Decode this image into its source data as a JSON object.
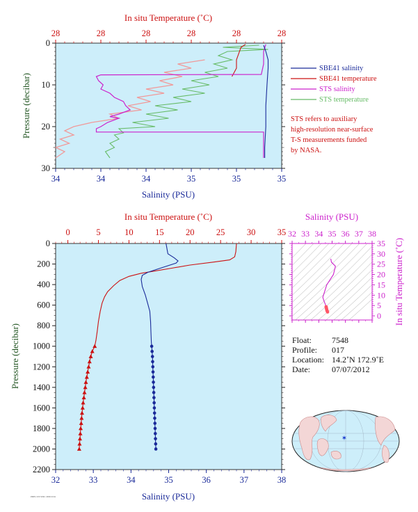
{
  "chart_data": [
    {
      "type": "line",
      "panel": "top-profile",
      "top_axis": {
        "label": "In situ Temperature (˚C)",
        "ticks": [
          "28",
          "28",
          "28",
          "28",
          "28",
          "28"
        ],
        "color": "#cc1111"
      },
      "bottom_axis": {
        "label": "Salinity (PSU)",
        "ticks": [
          "34",
          "34",
          "34",
          "35",
          "35",
          "35"
        ],
        "range": [
          34.0,
          35.0
        ],
        "color": "#1a2a99"
      },
      "left_axis": {
        "label": "Pressure (decibar)",
        "ticks": [
          "0",
          "10",
          "20",
          "30"
        ],
        "range": [
          0,
          30
        ],
        "inverted": true
      },
      "temp_range": [
        27.6,
        28.1
      ],
      "legend": {
        "placement": "right",
        "entries": [
          {
            "name": "SBE41 salinity",
            "color": "#1a2a99"
          },
          {
            "name": "SBE41 temperature",
            "color": "#cc1111"
          },
          {
            "name": "STS salinity",
            "color": "#cc22cc"
          },
          {
            "name": "STS temperature",
            "color": "#66bb66"
          }
        ]
      },
      "note": [
        "STS refers to auxiliary",
        "high-resolution near-surface",
        "T-S measurements funded",
        "by NASA."
      ],
      "series": [
        {
          "name": "SBE41 salinity",
          "axis": "salinity",
          "points": [
            [
              34.92,
              0.5
            ],
            [
              34.93,
              2
            ],
            [
              34.94,
              4
            ],
            [
              34.94,
              6
            ],
            [
              34.935,
              10
            ],
            [
              34.93,
              15
            ],
            [
              34.93,
              20
            ],
            [
              34.925,
              25
            ],
            [
              34.925,
              27.5
            ]
          ]
        },
        {
          "name": "SBE41 temperature",
          "axis": "temperature",
          "points": [
            [
              28.02,
              0.3
            ],
            [
              28.01,
              1
            ],
            [
              28.0,
              4
            ],
            [
              28.0,
              6
            ],
            [
              27.99,
              8
            ]
          ]
        },
        {
          "name": "STS salinity",
          "axis": "salinity",
          "points": [
            [
              34.93,
              0.3
            ],
            [
              34.92,
              2
            ],
            [
              34.92,
              5
            ],
            [
              34.91,
              7.5
            ],
            [
              34.2,
              7.6
            ],
            [
              34.18,
              8
            ],
            [
              34.19,
              9
            ],
            [
              34.21,
              10
            ],
            [
              34.2,
              11
            ],
            [
              34.24,
              12
            ],
            [
              34.26,
              13
            ],
            [
              34.3,
              14
            ],
            [
              34.31,
              15
            ],
            [
              34.33,
              16
            ],
            [
              34.28,
              17
            ],
            [
              34.24,
              17.6
            ],
            [
              34.28,
              18
            ],
            [
              34.23,
              19
            ],
            [
              34.2,
              20
            ],
            [
              34.18,
              20.5
            ],
            [
              34.18,
              21.3
            ],
            [
              34.92,
              21.3
            ],
            [
              34.92,
              22
            ],
            [
              34.92,
              25
            ],
            [
              34.92,
              27.5
            ]
          ]
        },
        {
          "name": "STS temperature",
          "axis": "temperature",
          "points": [
            [
              28.05,
              0.5
            ],
            [
              27.97,
              1
            ],
            [
              28.07,
              1.5
            ],
            [
              27.98,
              2
            ],
            [
              27.96,
              3
            ],
            [
              27.99,
              4
            ],
            [
              27.95,
              5
            ],
            [
              27.98,
              6
            ],
            [
              27.93,
              7
            ],
            [
              27.96,
              8
            ],
            [
              27.9,
              9
            ],
            [
              27.94,
              10
            ],
            [
              27.88,
              11
            ],
            [
              27.93,
              12
            ],
            [
              27.86,
              13
            ],
            [
              27.9,
              14
            ],
            [
              27.82,
              15
            ],
            [
              27.87,
              16
            ],
            [
              27.8,
              17
            ],
            [
              27.85,
              18
            ],
            [
              27.77,
              19
            ],
            [
              27.82,
              20
            ],
            [
              27.74,
              20.5
            ],
            [
              27.75,
              21.5
            ],
            [
              27.73,
              22
            ],
            [
              27.74,
              23
            ],
            [
              27.72,
              24
            ],
            [
              27.73,
              25
            ],
            [
              27.71,
              26
            ],
            [
              27.72,
              27.5
            ]
          ]
        },
        {
          "name": "STS temperature (pink)",
          "axis": "temperature",
          "points": [
            [
              27.93,
              4
            ],
            [
              27.87,
              5
            ],
            [
              27.9,
              6
            ],
            [
              27.84,
              7
            ],
            [
              27.88,
              8
            ],
            [
              27.83,
              9
            ],
            [
              27.86,
              10
            ],
            [
              27.8,
              11
            ],
            [
              27.84,
              12
            ],
            [
              27.78,
              13
            ],
            [
              27.81,
              14
            ],
            [
              27.76,
              15
            ],
            [
              27.79,
              16
            ],
            [
              27.72,
              17
            ],
            [
              27.74,
              18
            ],
            [
              27.68,
              19
            ],
            [
              27.64,
              20
            ],
            [
              27.62,
              21
            ],
            [
              27.64,
              22
            ],
            [
              27.61,
              23
            ],
            [
              27.63,
              24
            ],
            [
              27.6,
              25
            ],
            [
              27.62,
              26
            ],
            [
              27.6,
              27.5
            ]
          ]
        }
      ]
    },
    {
      "type": "line",
      "panel": "full-profile",
      "top_axis": {
        "label": "In situ Temperature (˚C)",
        "ticks": [
          "0",
          "5",
          "10",
          "15",
          "20",
          "25",
          "30",
          "35"
        ],
        "range": [
          -2,
          35
        ],
        "color": "#cc1111"
      },
      "bottom_axis": {
        "label": "Salinity (PSU)",
        "ticks": [
          "32",
          "33",
          "34",
          "35",
          "36",
          "37",
          "38"
        ],
        "range": [
          32,
          38
        ],
        "color": "#1a2a99"
      },
      "left_axis": {
        "label": "Pressure (decibar)",
        "ticks": [
          "0",
          "200",
          "400",
          "600",
          "800",
          "1000",
          "1200",
          "1400",
          "1600",
          "1800",
          "2000",
          "2200"
        ],
        "range": [
          0,
          2200
        ],
        "inverted": true
      },
      "series": [
        {
          "name": "Temperature",
          "axis": "temperature",
          "points": [
            [
              27.6,
              0
            ],
            [
              27.5,
              80
            ],
            [
              27.3,
              130
            ],
            [
              26.5,
              160
            ],
            [
              24,
              180
            ],
            [
              20,
              210
            ],
            [
              17,
              240
            ],
            [
              14,
              270
            ],
            [
              12,
              290
            ],
            [
              10,
              320
            ],
            [
              8.5,
              360
            ],
            [
              7.5,
              410
            ],
            [
              6.5,
              470
            ],
            [
              6,
              520
            ],
            [
              5.6,
              580
            ],
            [
              5.3,
              660
            ],
            [
              5,
              760
            ],
            [
              4.8,
              860
            ],
            [
              4.6,
              940
            ],
            [
              4.4,
              1000
            ]
          ]
        },
        {
          "name": "Salinity",
          "axis": "salinity",
          "points": [
            [
              34.93,
              0
            ],
            [
              34.96,
              60
            ],
            [
              34.98,
              100
            ],
            [
              35.15,
              140
            ],
            [
              35.25,
              170
            ],
            [
              35.2,
              190
            ],
            [
              34.95,
              220
            ],
            [
              34.7,
              250
            ],
            [
              34.45,
              280
            ],
            [
              34.3,
              310
            ],
            [
              34.27,
              350
            ],
            [
              34.3,
              420
            ],
            [
              34.38,
              500
            ],
            [
              34.44,
              580
            ],
            [
              34.5,
              660
            ],
            [
              34.52,
              760
            ],
            [
              34.53,
              860
            ],
            [
              34.54,
              960
            ],
            [
              34.55,
              1000
            ]
          ]
        },
        {
          "name": "Temperature (sampled)",
          "axis": "temperature",
          "points": [
            [
              4.4,
              1000
            ],
            [
              4.0,
              1050
            ],
            [
              3.75,
              1100
            ],
            [
              3.55,
              1150
            ],
            [
              3.4,
              1200
            ],
            [
              3.25,
              1250
            ],
            [
              3.1,
              1300
            ],
            [
              2.95,
              1350
            ],
            [
              2.85,
              1400
            ],
            [
              2.72,
              1450
            ],
            [
              2.62,
              1500
            ],
            [
              2.5,
              1550
            ],
            [
              2.42,
              1600
            ],
            [
              2.32,
              1650
            ],
            [
              2.25,
              1700
            ],
            [
              2.18,
              1750
            ],
            [
              2.1,
              1800
            ],
            [
              2.04,
              1850
            ],
            [
              1.98,
              1900
            ],
            [
              1.92,
              1950
            ],
            [
              1.86,
              2000
            ]
          ]
        },
        {
          "name": "Salinity (sampled)",
          "axis": "salinity",
          "points": [
            [
              34.55,
              1000
            ],
            [
              34.56,
              1050
            ],
            [
              34.57,
              1100
            ],
            [
              34.575,
              1150
            ],
            [
              34.58,
              1200
            ],
            [
              34.585,
              1250
            ],
            [
              34.59,
              1300
            ],
            [
              34.595,
              1350
            ],
            [
              34.6,
              1400
            ],
            [
              34.605,
              1450
            ],
            [
              34.61,
              1500
            ],
            [
              34.615,
              1550
            ],
            [
              34.62,
              1600
            ],
            [
              34.625,
              1650
            ],
            [
              34.63,
              1700
            ],
            [
              34.635,
              1750
            ],
            [
              34.64,
              1800
            ],
            [
              34.645,
              1850
            ],
            [
              34.65,
              1900
            ],
            [
              34.655,
              1950
            ],
            [
              34.66,
              2000
            ]
          ]
        }
      ]
    },
    {
      "type": "scatter",
      "panel": "ts-diagram",
      "top_axis": {
        "label": "Salinity (PSU)",
        "ticks": [
          "32",
          "33",
          "34",
          "35",
          "36",
          "37",
          "38"
        ],
        "range": [
          32,
          38
        ]
      },
      "right_axis": {
        "label": "In situ Temperature (˚C)",
        "ticks": [
          "0",
          "5",
          "10",
          "15",
          "20",
          "25",
          "30",
          "35"
        ],
        "range": [
          -2,
          35
        ]
      },
      "series": [
        {
          "name": "T-S",
          "points": [
            [
              34.9,
              27.6
            ],
            [
              34.95,
              26
            ],
            [
              35.25,
              24
            ],
            [
              35.1,
              20
            ],
            [
              34.6,
              15
            ],
            [
              34.4,
              11
            ],
            [
              34.3,
              9
            ],
            [
              34.4,
              7
            ],
            [
              34.5,
              5.5
            ],
            [
              34.55,
              4.4
            ]
          ]
        },
        {
          "name": "T-S (sampled)",
          "points": [
            [
              34.55,
              4.4
            ],
            [
              34.57,
              3.8
            ],
            [
              34.59,
              3.2
            ],
            [
              34.61,
              2.7
            ],
            [
              34.63,
              2.3
            ],
            [
              34.66,
              1.9
            ]
          ]
        }
      ]
    }
  ],
  "float_info": [
    {
      "label": "Float:",
      "value": "7548"
    },
    {
      "label": "Profile:",
      "value": "017"
    },
    {
      "label": "Location:",
      "value": "14.2˚N  172.9˚E"
    },
    {
      "label": "Date:",
      "value": "07/07/2012"
    }
  ],
  "map_marker": {
    "lat": 14.2,
    "lon": 172.9,
    "color": "#1133cc"
  },
  "footer_text": "PMEL/UW/WRC 2009/10/04",
  "colors": {
    "plot_bg": "#cdeefa",
    "red": "#cc1111",
    "blue": "#1a2a99",
    "magenta": "#cc22cc",
    "green": "#66bb66",
    "pink": "#f09a9a"
  }
}
